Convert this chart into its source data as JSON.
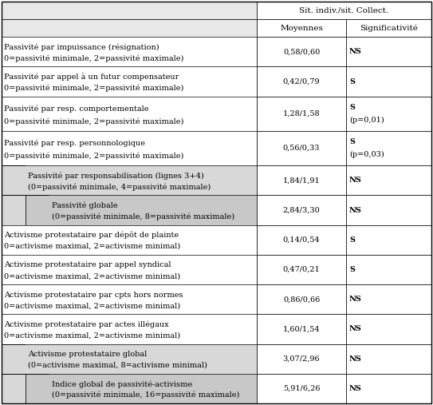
{
  "header_top": "Sit. indiv./sit. Collect.",
  "header_col1": "Moyennes",
  "header_col2": "Significativité",
  "rows": [
    {
      "indent": 0,
      "line1": "Passivité par impuissance (résignation)",
      "line2": "0=passivité minimale, 2=passivité maximale)",
      "moyennes": "0,58/0,60",
      "sig": "NS",
      "sig2": ""
    },
    {
      "indent": 0,
      "line1": "Passivité par appel à un futur compensateur",
      "line2": "0=passivité minimale, 2=passivité maximale)",
      "moyennes": "0,42/0,79",
      "sig": "S",
      "sig2": ""
    },
    {
      "indent": 0,
      "line1": "Passivité par resp. comportementale",
      "line2": "0=passivité minimale, 2=passivité maximale)",
      "moyennes": "1,28/1,58",
      "sig": "S",
      "sig2": "(p=0,01)"
    },
    {
      "indent": 0,
      "line1": "Passivité par resp. personnologique",
      "line2": "0=passivité minimale, 2=passivité maximale)",
      "moyennes": "0,56/0,33",
      "sig": "S",
      "sig2": "(p=0,03)"
    },
    {
      "indent": 1,
      "line1": "Passivité par responsabilisation (lignes 3+4)",
      "line2": "(0=passivité minimale, 4=passivité maximale)",
      "moyennes": "1,84/1,91",
      "sig": "NS",
      "sig2": ""
    },
    {
      "indent": 2,
      "line1": "Passivité globale",
      "line2": "(0=passivité minimale, 8=passivité maximale)",
      "moyennes": "2,84/3,30",
      "sig": "NS",
      "sig2": ""
    },
    {
      "indent": 0,
      "line1": "Activisme protestataire par dépôt de plainte",
      "line2": "0=activisme maximal, 2=activisme minimal)",
      "moyennes": "0,14/0,54",
      "sig": "S",
      "sig2": ""
    },
    {
      "indent": 0,
      "line1": "Activisme protestataire par appel syndical",
      "line2": "0=activisme maximal, 2=activisme minimal)",
      "moyennes": "0,47/0,21",
      "sig": "S",
      "sig2": ""
    },
    {
      "indent": 0,
      "line1": "Activisme protestataire par cpts hors normes",
      "line2": "0=activisme maximal, 2=activisme minimal)",
      "moyennes": "0,86/0,66",
      "sig": "NS",
      "sig2": ""
    },
    {
      "indent": 0,
      "line1": "Activisme protestataire par actes illégaux",
      "line2": "0=activisme maximal, 2=activisme minimal)",
      "moyennes": "1,60/1,54",
      "sig": "NS",
      "sig2": ""
    },
    {
      "indent": 1,
      "line1": "Activisme protestataire global",
      "line2": "(0=activisme maximal, 8=activisme minimal)",
      "moyennes": "3,07/2,96",
      "sig": "NS",
      "sig2": ""
    },
    {
      "indent": 2,
      "line1": "Indice global de passivité-activisme",
      "line2": "(0=passivité minimale, 16=passivité maximale)",
      "moyennes": "5,91/6,26",
      "sig": "NS",
      "sig2": ""
    }
  ],
  "font_size": 7.0,
  "header_font_size": 7.5,
  "bg_header_left": "#e8e8e8",
  "bg_color_indent1": "#d8d8d8",
  "bg_color_indent2": "#c8c8c8",
  "bg_color_normal": "#ffffff",
  "border_color": "#000000",
  "fig_w": 5.43,
  "fig_h": 5.07,
  "dpi": 100
}
